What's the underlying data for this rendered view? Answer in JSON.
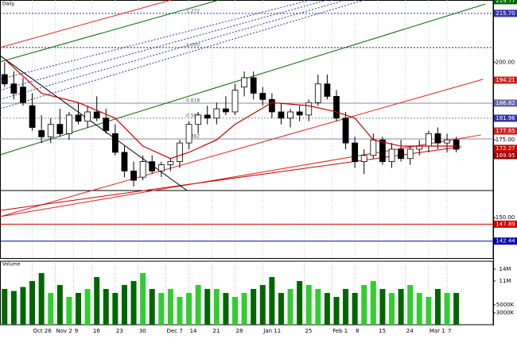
{
  "chart_data": [
    {
      "type": "candlestick",
      "title": "Daily",
      "x": [
        0,
        2,
        4,
        6,
        8,
        10,
        12,
        14,
        16,
        18,
        20,
        22,
        24,
        26,
        28,
        30,
        32,
        34,
        36,
        38,
        40,
        42,
        44,
        46,
        48,
        50,
        52,
        54,
        56,
        58,
        60,
        62,
        64,
        66,
        68,
        70,
        72,
        74,
        76,
        78,
        80,
        82,
        84,
        86,
        88,
        90,
        92,
        94,
        96,
        98
      ],
      "open": [
        196,
        193,
        192,
        186,
        178,
        176,
        180,
        177,
        183,
        181,
        184,
        182,
        177,
        171,
        165,
        163,
        168,
        165,
        167,
        168,
        174,
        180,
        183,
        182,
        185,
        184,
        192,
        195,
        190,
        188,
        184,
        182,
        184,
        183,
        187,
        193,
        189,
        182,
        174,
        168,
        170,
        175,
        168,
        172,
        169,
        172,
        173,
        177,
        174,
        175
      ],
      "high": [
        200,
        197,
        195,
        190,
        183,
        182,
        185,
        184,
        187,
        186,
        189,
        185,
        180,
        173,
        168,
        170,
        170,
        168,
        169,
        175,
        181,
        184,
        186,
        187,
        189,
        193,
        197,
        197,
        192,
        190,
        187,
        185,
        186,
        188,
        196,
        196,
        191,
        184,
        176,
        172,
        177,
        176,
        174,
        175,
        173,
        175,
        178,
        179,
        177,
        176
      ],
      "low": [
        192,
        188,
        186,
        178,
        174,
        174,
        176,
        175,
        180,
        179,
        181,
        177,
        170,
        163,
        160,
        162,
        164,
        163,
        165,
        166,
        172,
        177,
        180,
        180,
        183,
        183,
        189,
        188,
        186,
        182,
        180,
        179,
        181,
        181,
        186,
        188,
        181,
        172,
        166,
        164,
        169,
        167,
        166,
        168,
        167,
        170,
        171,
        172,
        171,
        171
      ],
      "close": [
        193,
        190,
        187,
        179,
        176,
        180,
        177,
        183,
        181,
        184,
        182,
        178,
        171,
        165,
        162,
        168,
        165,
        167,
        168,
        174,
        180,
        183,
        182,
        185,
        184,
        191,
        195,
        190,
        188,
        184,
        182,
        184,
        183,
        187,
        193,
        189,
        182,
        174,
        168,
        170,
        175,
        168,
        172,
        169,
        172,
        173,
        177,
        174,
        175,
        172
      ],
      "up_color": "#ffffff",
      "down_color": "#000000",
      "moving_average": {
        "color": "#cc0000",
        "x": [
          0,
          8,
          16,
          24,
          30,
          36,
          40,
          46,
          50,
          58,
          66,
          72,
          76,
          80,
          86,
          92,
          98
        ],
        "values": [
          201,
          190,
          187,
          182,
          173,
          169,
          171,
          175,
          180,
          187,
          186,
          184,
          182,
          175,
          173,
          173,
          173
        ]
      },
      "trendlines": [
        {
          "color": "#dd2222",
          "dash": false,
          "x": [
            -1,
            36.1
          ],
          "values": [
            204.7,
            220
          ]
        },
        {
          "color": "#006600",
          "dash": false,
          "x": [
            -1,
            46.5
          ],
          "values": [
            200.1,
            220
          ]
        },
        {
          "color": "#006600",
          "dash": false,
          "x": [
            -1,
            104.3
          ],
          "values": [
            170.2,
            218.7
          ]
        },
        {
          "color": "#dd2222",
          "dash": false,
          "x": [
            -1,
            103.8
          ],
          "values": [
            150.3,
            194.5
          ]
        },
        {
          "color": "#dd2222",
          "dash": false,
          "x": [
            -1,
            103.4
          ],
          "values": [
            150.3,
            176.6
          ]
        },
        {
          "color": "#cc0000",
          "dash": false,
          "x": [
            -1,
            99.1
          ],
          "values": [
            152.3,
            172.8
          ]
        },
        {
          "color": "#000000",
          "dash": false,
          "x": [
            -1,
            39.6
          ],
          "values": [
            202.1,
            158.7
          ]
        },
        {
          "color": "#3333aa",
          "dash": true,
          "x": [
            -1,
            66.3
          ],
          "values": [
            194.5,
            220
          ]
        },
        {
          "color": "#3333aa",
          "dash": true,
          "x": [
            -1,
            70
          ],
          "values": [
            191,
            220
          ]
        },
        {
          "color": "#3333aa",
          "dash": true,
          "x": [
            -1,
            74
          ],
          "values": [
            188,
            220
          ]
        },
        {
          "color": "#3333aa",
          "dash": true,
          "x": [
            -1,
            78
          ],
          "values": [
            185,
            220
          ]
        }
      ],
      "hlines": [
        {
          "value": 215.7,
          "color": "#3333aa",
          "dash": true,
          "label": "1.272"
        },
        {
          "value": 204.7,
          "color": "#222266",
          "dash": true,
          "label": "1.000"
        },
        {
          "value": 186.8,
          "color": "#8888aa",
          "dash": false,
          "label": "0.618"
        },
        {
          "value": 182.0,
          "color": "#8888aa",
          "dash": true,
          "label": "0.500"
        },
        {
          "value": 175.3,
          "color": "#8888aa",
          "dash": false,
          "label": "0.382"
        },
        {
          "value": 158.7,
          "color": "#000000",
          "dash": false
        },
        {
          "value": 147.89,
          "color": "#cc0000",
          "dash": false
        },
        {
          "value": 142.44,
          "color": "#0000aa",
          "dash": false
        }
      ],
      "xlim": [
        -1,
        106
      ],
      "ylim": [
        137,
        220
      ],
      "yticks": [
        {
          "value": 150,
          "label": "150.00"
        },
        {
          "value": 175,
          "label": "175.00"
        },
        {
          "value": 200,
          "label": "200.00"
        }
      ],
      "price_tags": [
        {
          "value": 219.77,
          "label": "219.77",
          "color": "#006600"
        },
        {
          "value": 215.7,
          "label": "215.70",
          "color": "#3333aa"
        },
        {
          "value": 194.21,
          "label": "194.21",
          "color": "#cc2222"
        },
        {
          "value": 186.82,
          "label": "186.82",
          "color": "#6666aa"
        },
        {
          "value": 181.96,
          "label": "181.96",
          "color": "#3333aa"
        },
        {
          "value": 177.85,
          "label": "177.85",
          "color": "#cc2222"
        },
        {
          "value": 172.27,
          "label": "172.27",
          "color": "#cc0000"
        },
        {
          "value": 169.95,
          "label": "169.95",
          "color": "#990000"
        },
        {
          "value": 147.89,
          "label": "147.89",
          "color": "#cc0000"
        },
        {
          "value": 142.44,
          "label": "142.44",
          "color": "#0000aa"
        }
      ]
    },
    {
      "type": "bar",
      "title": "Volume",
      "x": [
        0,
        2,
        4,
        6,
        8,
        10,
        12,
        14,
        16,
        18,
        20,
        22,
        24,
        26,
        28,
        30,
        32,
        34,
        36,
        38,
        40,
        42,
        44,
        46,
        48,
        50,
        52,
        54,
        56,
        58,
        60,
        62,
        64,
        66,
        68,
        70,
        72,
        74,
        76,
        78,
        80,
        82,
        84,
        86,
        88,
        90,
        92,
        94,
        96,
        98
      ],
      "values": [
        9000000,
        8500000,
        9500000,
        11000000,
        13000000,
        8000000,
        10000000,
        7000000,
        8000000,
        9000000,
        12000000,
        9000000,
        8000000,
        10000000,
        11000000,
        13000000,
        9000000,
        8000000,
        9000000,
        7000000,
        8000000,
        10000000,
        9000000,
        9000000,
        8000000,
        7000000,
        8000000,
        9000000,
        10000000,
        12000000,
        8000000,
        9000000,
        11000000,
        10000000,
        9000000,
        8000000,
        7000000,
        9000000,
        8000000,
        10000000,
        11000000,
        9000000,
        8000000,
        9000000,
        10000000,
        8000000,
        7000000,
        9000000,
        8000000,
        8000000
      ],
      "up_color": "#33cc33",
      "down_color": "#006600",
      "xlim": [
        -1,
        106
      ],
      "ylim": [
        0,
        16000000
      ],
      "yticks": [
        {
          "value": 14000000,
          "label": "14M"
        },
        {
          "value": 11000000,
          "label": "11M"
        },
        {
          "value": 5000000,
          "label": "5000K"
        },
        {
          "value": 3000000,
          "label": "3000K"
        }
      ],
      "xticks": [
        {
          "value": 6,
          "label": "Oct 26"
        },
        {
          "value": 11,
          "label": "Nov 2"
        },
        {
          "value": 15,
          "label": "9"
        },
        {
          "value": 19,
          "label": "16"
        },
        {
          "value": 24,
          "label": "23"
        },
        {
          "value": 29,
          "label": "30"
        },
        {
          "value": 35,
          "label": "Dec 7"
        },
        {
          "value": 40,
          "label": "14"
        },
        {
          "value": 45,
          "label": "21"
        },
        {
          "value": 50,
          "label": "28"
        },
        {
          "value": 56,
          "label": "Jan 11"
        },
        {
          "value": 65,
          "label": "25"
        },
        {
          "value": 71,
          "label": "Feb 1"
        },
        {
          "value": 76,
          "label": "8"
        },
        {
          "value": 81,
          "label": "15"
        },
        {
          "value": 87,
          "label": "24"
        },
        {
          "value": 92,
          "label": "Mar 1"
        },
        {
          "value": 96,
          "label": "7"
        }
      ]
    }
  ]
}
